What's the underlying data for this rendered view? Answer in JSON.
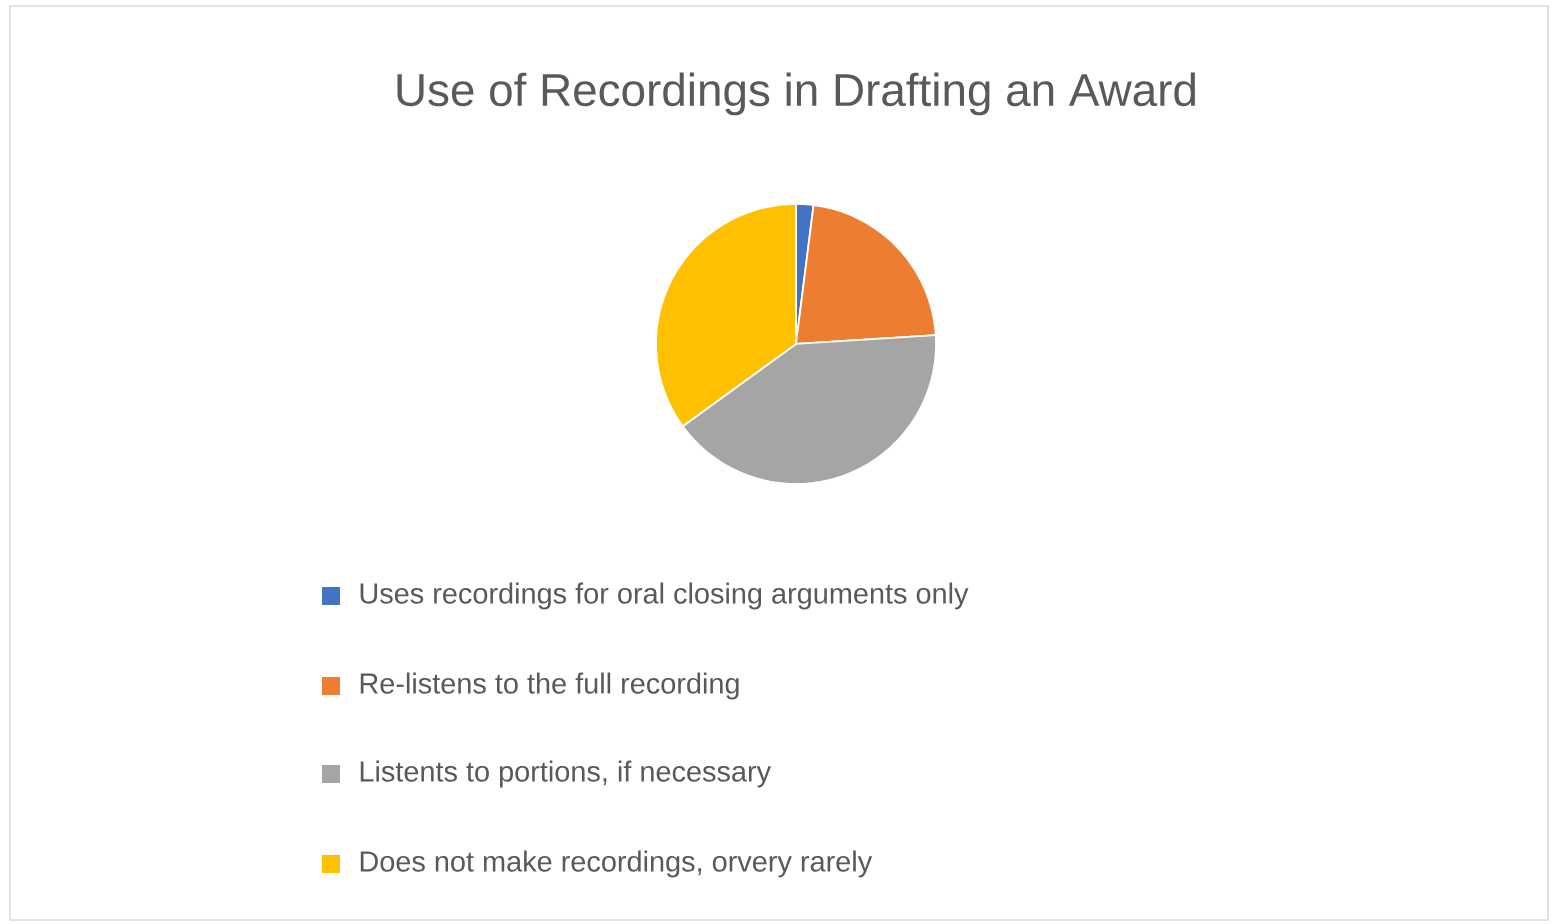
{
  "chart_data": {
    "type": "pie",
    "title": "Use of Recordings in Drafting an Award",
    "categories": [
      "Uses recordings for oral closing arguments only",
      "Re-listens to the full recording",
      "Listents to portions, if necessary",
      "Does not make recordings, orvery  rarely"
    ],
    "values": [
      2,
      22,
      41,
      35
    ],
    "colors": [
      "#4472c4",
      "#ed7d31",
      "#a5a5a5",
      "#ffc000"
    ],
    "legend": "bottom"
  }
}
